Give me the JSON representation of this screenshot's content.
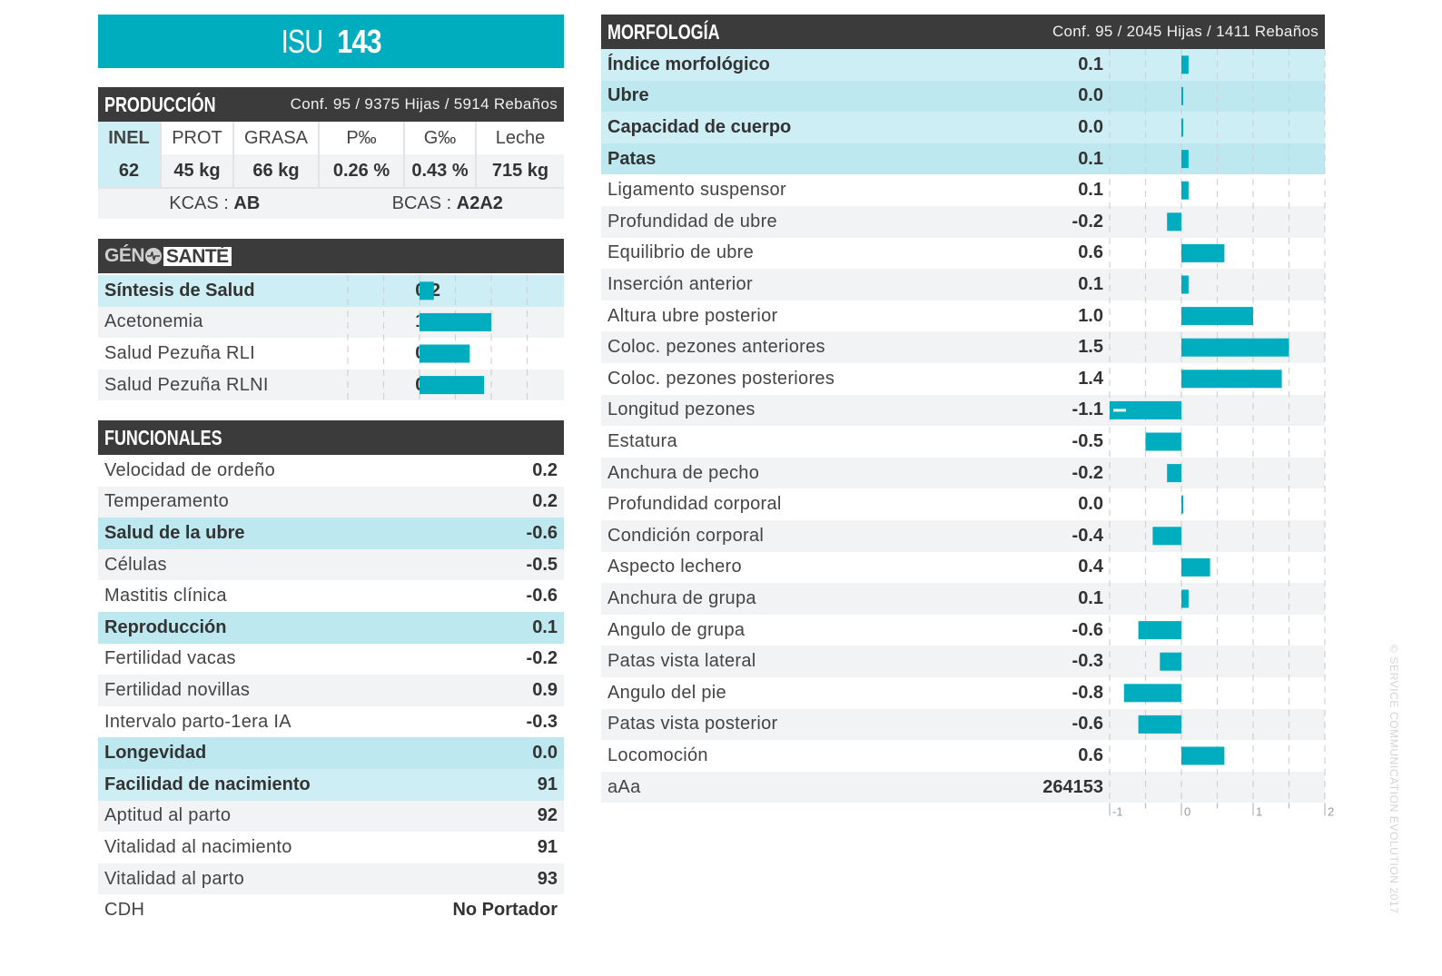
{
  "title": {
    "prefix": "ISU",
    "value": "143"
  },
  "colors": {
    "accent": "#00adbf",
    "header_bg": "#3b3b3b",
    "highlight": "#cdeef4"
  },
  "produccion": {
    "title": "PRODUCCIÓN",
    "meta": "Conf. 95 / 9375 Hijas / 5914 Rebaños",
    "columns": [
      "INEL",
      "PROT",
      "GRASA",
      "P‰",
      "G‰",
      "Leche"
    ],
    "values": [
      "62",
      "45 kg",
      "66 kg",
      "0.26 %",
      "0.43 %",
      "715 kg"
    ],
    "kcas_label": "KCAS : ",
    "kcas_value": "AB",
    "bcas_label": "BCAS : ",
    "bcas_value": "A2A2"
  },
  "genosante": {
    "logo_left": "GÉN",
    "logo_right": "SANTÉ",
    "rows": [
      {
        "label": "Síntesis de Salud",
        "value": "0.2"
      },
      {
        "label": "Acetonemia",
        "value": "1.0"
      },
      {
        "label": "Salud Pezuña RLI",
        "value": "0.7"
      },
      {
        "label": "Salud Pezuña RLNI",
        "value": "0.9"
      }
    ]
  },
  "funcionales": {
    "title": "FUNCIONALES",
    "rows": [
      {
        "label": "Velocidad de ordeño",
        "value": "0.2"
      },
      {
        "label": "Temperamento",
        "value": "0.2"
      },
      {
        "label": "Salud de la ubre",
        "value": "-0.6"
      },
      {
        "label": "Células",
        "value": "-0.5"
      },
      {
        "label": "Mastitis clínica",
        "value": "-0.6"
      },
      {
        "label": "Reproducción",
        "value": "0.1"
      },
      {
        "label": "Fertilidad vacas",
        "value": "-0.2"
      },
      {
        "label": "Fertilidad novillas",
        "value": "0.9"
      },
      {
        "label": "Intervalo parto-1era IA",
        "value": "-0.3"
      },
      {
        "label": "Longevidad",
        "value": "0.0"
      },
      {
        "label": "Facilidad de nacimiento",
        "value": "91"
      },
      {
        "label": "Aptitud al parto",
        "value": "92"
      },
      {
        "label": "Vitalidad al nacimiento",
        "value": "91"
      },
      {
        "label": "Vitalidad al parto",
        "value": "93"
      },
      {
        "label": "CDH",
        "value": "No Portador"
      }
    ]
  },
  "morfologia": {
    "title": "MORFOLOGÍA",
    "meta": "Conf. 95 / 2045 Hijas / 1411 Rebaños",
    "rows": [
      {
        "label": "Índice morfológico",
        "value": "0.1"
      },
      {
        "label": "Ubre",
        "value": "0.0"
      },
      {
        "label": "Capacidad de cuerpo",
        "value": "0.0"
      },
      {
        "label": "Patas",
        "value": "0.1"
      },
      {
        "label": "Ligamento suspensor",
        "value": "0.1"
      },
      {
        "label": "Profundidad de ubre",
        "value": "-0.2"
      },
      {
        "label": "Equilibrio de ubre",
        "value": "0.6"
      },
      {
        "label": "Inserción anterior",
        "value": "0.1"
      },
      {
        "label": "Altura ubre posterior",
        "value": "1.0"
      },
      {
        "label": "Coloc. pezones anteriores",
        "value": "1.5"
      },
      {
        "label": "Coloc. pezones posteriores",
        "value": "1.4"
      },
      {
        "label": "Longitud pezones",
        "value": "-1.1"
      },
      {
        "label": "Estatura",
        "value": "-0.5"
      },
      {
        "label": "Anchura de pecho",
        "value": "-0.2"
      },
      {
        "label": "Profundidad corporal",
        "value": "0.0"
      },
      {
        "label": "Condición corporal",
        "value": "-0.4"
      },
      {
        "label": "Aspecto lechero",
        "value": "0.4"
      },
      {
        "label": "Anchura de grupa",
        "value": "0.1"
      },
      {
        "label": "Angulo de grupa",
        "value": "-0.6"
      },
      {
        "label": "Patas vista lateral",
        "value": "-0.3"
      },
      {
        "label": "Angulo del pie",
        "value": "-0.8"
      },
      {
        "label": "Patas vista posterior",
        "value": "-0.6"
      },
      {
        "label": "Locomoción",
        "value": "0.6"
      },
      {
        "label": "aAa",
        "value": "264153"
      }
    ],
    "axis_ticks": [
      "-1",
      "0",
      "1",
      "2"
    ]
  },
  "copyright": "© SERVICE COMMUNICATION EVOLUTION 2017",
  "chart_data": [
    {
      "type": "bar",
      "orientation": "horizontal",
      "title": "GÉNOSANTÉ",
      "categories": [
        "Síntesis de Salud",
        "Acetonemia",
        "Salud Pezuña RLI",
        "Salud Pezuña RLNI"
      ],
      "values": [
        0.2,
        1.0,
        0.7,
        0.9
      ],
      "xlim": [
        -1,
        1.5
      ],
      "grid_step": 0.5,
      "grid": true
    },
    {
      "type": "bar",
      "orientation": "horizontal",
      "title": "MORFOLOGÍA",
      "categories": [
        "Índice morfológico",
        "Ubre",
        "Capacidad de cuerpo",
        "Patas",
        "Ligamento suspensor",
        "Profundidad de ubre",
        "Equilibrio de ubre",
        "Inserción anterior",
        "Altura ubre posterior",
        "Coloc. pezones anteriores",
        "Coloc. pezones posteriores",
        "Longitud pezones",
        "Estatura",
        "Anchura de pecho",
        "Profundidad corporal",
        "Condición corporal",
        "Aspecto lechero",
        "Anchura de grupa",
        "Angulo de grupa",
        "Patas vista lateral",
        "Angulo del pie",
        "Patas vista posterior",
        "Locomoción"
      ],
      "values": [
        0.1,
        0.0,
        0.0,
        0.1,
        0.1,
        -0.2,
        0.6,
        0.1,
        1.0,
        1.5,
        1.4,
        -1.1,
        -0.5,
        -0.2,
        0.0,
        -0.4,
        0.4,
        0.1,
        -0.6,
        -0.3,
        -0.8,
        -0.6,
        0.6
      ],
      "xlim": [
        -1,
        2
      ],
      "xticks": [
        -1,
        0,
        1,
        2
      ],
      "grid_step": 0.5,
      "grid": true,
      "overflow_marker": "values beyond -1 clipped with white dash"
    }
  ]
}
